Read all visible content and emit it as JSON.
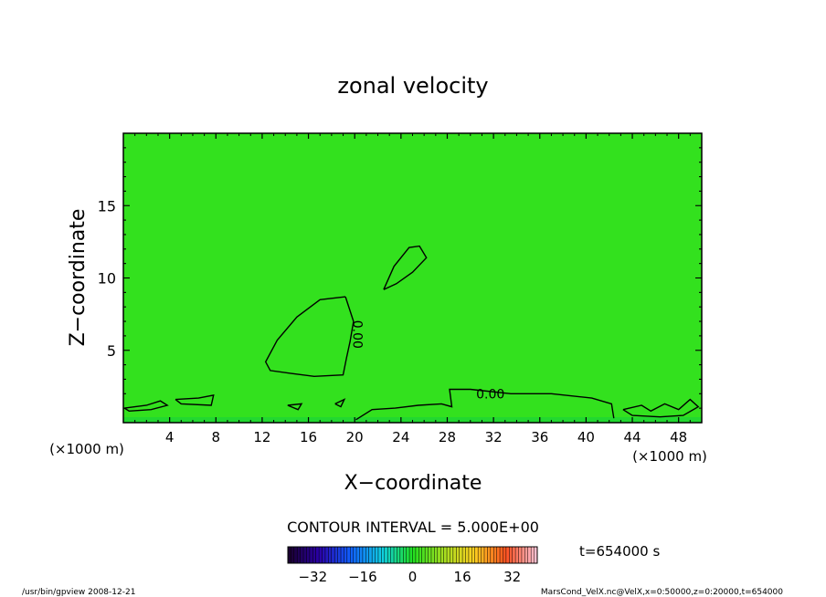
{
  "chart_data": {
    "type": "heatmap",
    "title": "zonal velocity",
    "xlabel": "X−coordinate",
    "ylabel": "Z−coordinate",
    "x_unit_left": "(×1000 m)",
    "x_unit_right": "(×1000 m)",
    "xlim": [
      0,
      50
    ],
    "ylim": [
      0,
      20
    ],
    "x_ticks": [
      4,
      8,
      12,
      16,
      20,
      24,
      28,
      32,
      36,
      40,
      44,
      48
    ],
    "y_ticks": [
      5,
      10,
      15
    ],
    "contour_interval_label": "CONTOUR INTERVAL = 5.000E+00",
    "contour_label": "0.00",
    "time_label": "t=654000 s",
    "colorbar": {
      "min": -40,
      "max": 40,
      "ticks": [
        -32,
        -16,
        0,
        16,
        32
      ],
      "tick_labels": [
        "−32",
        "−16",
        "0",
        "16",
        "32"
      ]
    },
    "field_color": "#33e11e",
    "contours_zero": [
      [
        [
          22.5,
          9.2
        ],
        [
          23.4,
          10.8
        ],
        [
          24.7,
          12.1
        ],
        [
          25.6,
          12.2
        ],
        [
          26.2,
          11.4
        ],
        [
          25.0,
          10.4
        ],
        [
          23.6,
          9.6
        ],
        [
          22.5,
          9.2
        ]
      ],
      [
        [
          19.2,
          8.7
        ],
        [
          17.0,
          8.5
        ],
        [
          15.0,
          7.3
        ],
        [
          13.3,
          5.7
        ],
        [
          12.3,
          4.2
        ],
        [
          12.7,
          3.6
        ],
        [
          14.5,
          3.4
        ],
        [
          16.5,
          3.2
        ],
        [
          19.0,
          3.3
        ],
        [
          19.3,
          4.5
        ],
        [
          19.6,
          5.6
        ],
        [
          19.9,
          7.0
        ],
        [
          19.2,
          8.7
        ]
      ],
      [
        [
          20.1,
          0.2
        ],
        [
          21.5,
          0.9
        ],
        [
          23.5,
          1.0
        ],
        [
          25.5,
          1.2
        ],
        [
          27.5,
          1.3
        ],
        [
          28.4,
          1.1
        ],
        [
          28.2,
          2.3
        ],
        [
          30.0,
          2.3
        ],
        [
          33.5,
          2.0
        ],
        [
          37.0,
          2.0
        ],
        [
          40.5,
          1.7
        ],
        [
          42.2,
          1.3
        ],
        [
          42.4,
          0.3
        ]
      ],
      [
        [
          0.1,
          1.0
        ],
        [
          2.0,
          1.2
        ],
        [
          3.2,
          1.5
        ],
        [
          3.8,
          1.2
        ],
        [
          2.4,
          0.9
        ],
        [
          0.5,
          0.8
        ],
        [
          0.1,
          1.0
        ]
      ],
      [
        [
          4.5,
          1.6
        ],
        [
          6.5,
          1.7
        ],
        [
          7.8,
          1.9
        ],
        [
          7.6,
          1.2
        ],
        [
          5.0,
          1.3
        ],
        [
          4.5,
          1.6
        ]
      ],
      [
        [
          14.2,
          1.2
        ],
        [
          15.4,
          1.3
        ],
        [
          15.1,
          0.9
        ],
        [
          14.2,
          1.2
        ]
      ],
      [
        [
          18.3,
          1.3
        ],
        [
          19.1,
          1.6
        ],
        [
          18.8,
          1.1
        ],
        [
          18.3,
          1.3
        ]
      ],
      [
        [
          43.2,
          0.9
        ],
        [
          44.8,
          1.2
        ],
        [
          45.6,
          0.8
        ],
        [
          46.8,
          1.3
        ],
        [
          48.0,
          0.9
        ],
        [
          49.0,
          1.6
        ],
        [
          49.7,
          1.1
        ],
        [
          48.4,
          0.5
        ],
        [
          46.4,
          0.4
        ],
        [
          44.0,
          0.5
        ],
        [
          43.2,
          0.9
        ]
      ]
    ]
  },
  "footer": {
    "left": "/usr/bin/gpview   2008-12-21",
    "right": "MarsCond_VelX.nc@VelX,x=0:50000,z=0:20000,t=654000"
  }
}
